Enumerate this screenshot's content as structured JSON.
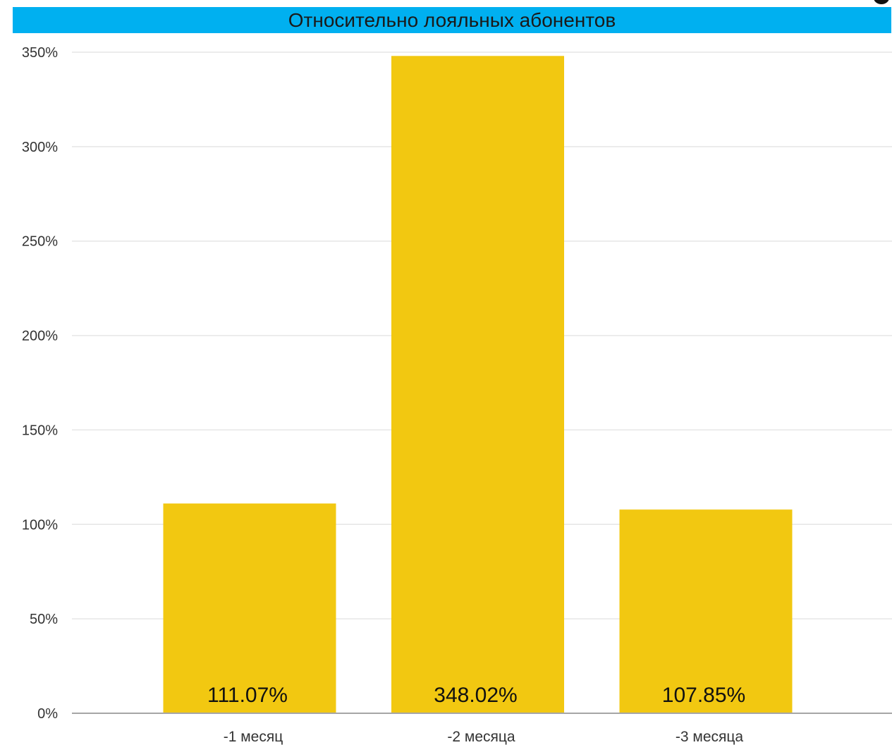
{
  "colors": {
    "title_bar": "#00B0F0",
    "bar": "#F2C811",
    "grid": "#E6E6E6",
    "axis": "#A6A6A6"
  },
  "chart_data": {
    "type": "bar",
    "title": "Относительно лояльных абонентов",
    "categories": [
      "-1 месяц",
      "-2 месяца",
      "-3 месяца"
    ],
    "values": [
      111.07,
      348.02,
      107.85
    ],
    "data_labels": [
      "111.07%",
      "348.02%",
      "107.85%"
    ],
    "y_ticks": [
      0,
      50,
      100,
      150,
      200,
      250,
      300,
      350
    ],
    "y_tick_labels": [
      "0%",
      "50%",
      "100%",
      "150%",
      "200%",
      "250%",
      "300%",
      "350%"
    ],
    "ylim": [
      0,
      350
    ],
    "grid": true,
    "legend": "none"
  }
}
